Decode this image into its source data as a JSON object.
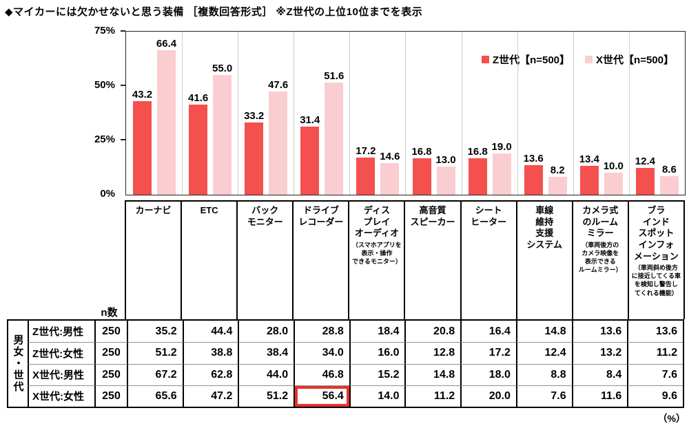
{
  "title": "◆マイカーには欠かせないと思う装備 ［複数回答形式］ ※Z世代の上位10位までを表示",
  "chart_data": {
    "type": "bar",
    "title": "マイカーには欠かせないと思う装備（複数回答形式）Z世代の上位10位までを表示",
    "ylim": [
      0,
      75
    ],
    "yticks": [
      {
        "value": 0,
        "label": "0%"
      },
      {
        "value": 25,
        "label": "25%"
      },
      {
        "value": 50,
        "label": "50%"
      },
      {
        "value": 75,
        "label": "75%"
      }
    ],
    "grid": "light vertical separators between category columns",
    "legend_position": "top-right inside plot",
    "categories": [
      {
        "label": "カーナビ",
        "note": ""
      },
      {
        "label": "ETC",
        "note": ""
      },
      {
        "label": "バック\nモニター",
        "note": ""
      },
      {
        "label": "ドライブ\nレコーダー",
        "note": ""
      },
      {
        "label": "ディス\nプレイ\nオーディオ",
        "note": "（スマホアプリを\n表示・操作\nできるモニター）"
      },
      {
        "label": "高音質\nスピーカー",
        "note": ""
      },
      {
        "label": "シート\nヒーター",
        "note": ""
      },
      {
        "label": "車線\n維持\n支援\nシステム",
        "note": ""
      },
      {
        "label": "カメラ式\nのルーム\nミラー",
        "note": "（車両後方の\nカメラ映像を\n表示できる\nルームミラー）"
      },
      {
        "label": "ブラ\nインド\nスポット\nインフォ\nメーション",
        "note": "（車両斜め後方\nに接近してくる車\nを検知し警告し\nてくれる機能）"
      }
    ],
    "series": [
      {
        "name": "Z世代【n=500】",
        "color": "#f4504e",
        "values": [
          43.2,
          41.6,
          33.2,
          31.4,
          17.2,
          16.8,
          16.8,
          13.6,
          13.4,
          12.4
        ]
      },
      {
        "name": "X世代【n=500】",
        "color": "#facdd0",
        "values": [
          66.4,
          55.0,
          47.6,
          51.6,
          14.6,
          13.0,
          19.0,
          8.2,
          10.0,
          8.6
        ]
      }
    ]
  },
  "table": {
    "corner_label": "男女・世代",
    "n_header": "n数",
    "rows": [
      {
        "label": "Z世代:男性",
        "n": "250",
        "values": [
          35.2,
          44.4,
          28.0,
          28.8,
          18.4,
          20.8,
          16.4,
          14.8,
          13.6,
          13.6
        ]
      },
      {
        "label": "Z世代:女性",
        "n": "250",
        "values": [
          51.2,
          38.8,
          38.4,
          34.0,
          16.0,
          12.8,
          17.2,
          12.4,
          13.2,
          11.2
        ]
      },
      {
        "label": "X世代:男性",
        "n": "250",
        "values": [
          67.2,
          62.8,
          44.0,
          46.8,
          15.2,
          14.8,
          18.0,
          8.8,
          8.4,
          7.6
        ]
      },
      {
        "label": "X世代:女性",
        "n": "250",
        "values": [
          65.6,
          47.2,
          51.2,
          56.4,
          14.0,
          11.2,
          20.0,
          7.6,
          11.6,
          9.6
        ]
      }
    ],
    "highlight": {
      "row": 3,
      "col": 3,
      "color": "#e5332c"
    },
    "unit_label": "（%）"
  }
}
